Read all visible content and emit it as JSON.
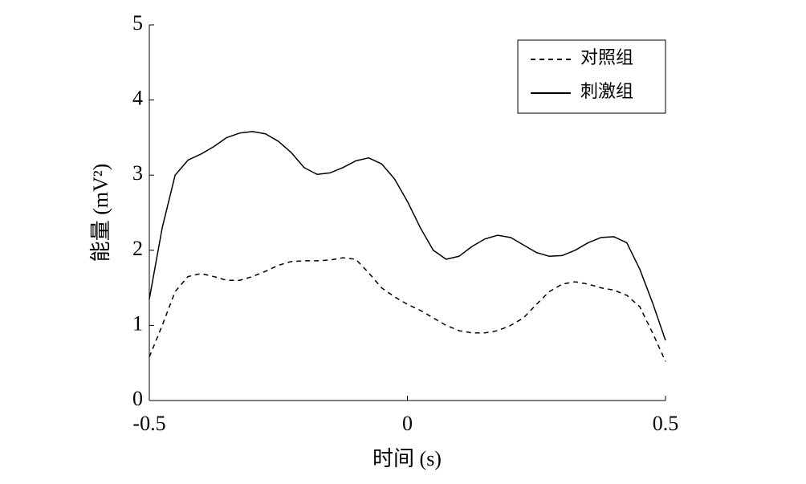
{
  "chart_data": {
    "type": "line",
    "xlabel": "时间 (s)",
    "ylabel": "能量 (mV²)",
    "x": [
      -0.5,
      -0.475,
      -0.45,
      -0.425,
      -0.4,
      -0.375,
      -0.35,
      -0.325,
      -0.3,
      -0.275,
      -0.25,
      -0.225,
      -0.2,
      -0.175,
      -0.15,
      -0.125,
      -0.1,
      -0.075,
      -0.05,
      -0.025,
      0,
      0.025,
      0.05,
      0.075,
      0.1,
      0.125,
      0.15,
      0.175,
      0.2,
      0.225,
      0.25,
      0.275,
      0.3,
      0.325,
      0.35,
      0.375,
      0.4,
      0.425,
      0.45,
      0.475,
      0.5
    ],
    "series": [
      {
        "name": "对照组",
        "color": "#000000",
        "dash": true,
        "values": [
          0.58,
          1.0,
          1.45,
          1.65,
          1.69,
          1.65,
          1.6,
          1.6,
          1.65,
          1.72,
          1.8,
          1.85,
          1.86,
          1.86,
          1.87,
          1.9,
          1.88,
          1.7,
          1.5,
          1.38,
          1.28,
          1.2,
          1.1,
          1.0,
          0.93,
          0.9,
          0.9,
          0.93,
          1.0,
          1.1,
          1.28,
          1.45,
          1.55,
          1.58,
          1.55,
          1.5,
          1.47,
          1.4,
          1.25,
          0.9,
          0.52
        ]
      },
      {
        "name": "刺激组",
        "color": "#000000",
        "dash": false,
        "values": [
          1.35,
          2.3,
          3.0,
          3.2,
          3.28,
          3.38,
          3.5,
          3.56,
          3.58,
          3.55,
          3.45,
          3.3,
          3.1,
          3.01,
          3.03,
          3.1,
          3.19,
          3.23,
          3.15,
          2.95,
          2.65,
          2.3,
          2.0,
          1.88,
          1.92,
          2.05,
          2.15,
          2.2,
          2.17,
          2.07,
          1.97,
          1.92,
          1.93,
          2.0,
          2.1,
          2.17,
          2.18,
          2.1,
          1.75,
          1.3,
          0.8
        ]
      }
    ],
    "xlim": [
      -0.5,
      0.5
    ],
    "xticks": [
      -0.5,
      0,
      0.5
    ],
    "ylim": [
      0,
      5
    ],
    "yticks": [
      0,
      1,
      2,
      3,
      4,
      5
    ],
    "legend": "upper right",
    "grid": false
  }
}
